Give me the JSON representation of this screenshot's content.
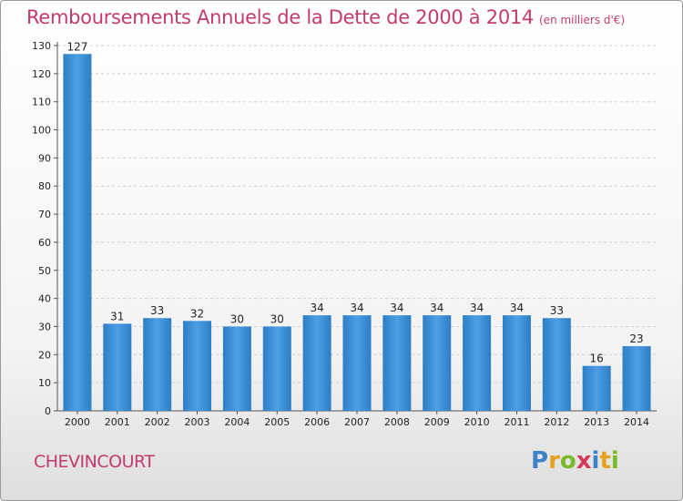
{
  "chart_data": {
    "type": "bar",
    "title": "Remboursements Annuels de la Dette de 2000 à 2014",
    "unit": "(en milliers d'€)",
    "categories": [
      "2000",
      "2001",
      "2002",
      "2003",
      "2004",
      "2005",
      "2006",
      "2007",
      "2008",
      "2009",
      "2010",
      "2011",
      "2012",
      "2013",
      "2014"
    ],
    "values": [
      127,
      31,
      33,
      32,
      30,
      30,
      34,
      34,
      34,
      34,
      34,
      34,
      33,
      16,
      23
    ],
    "ylim": [
      0,
      130
    ],
    "yticks": [
      0,
      10,
      20,
      30,
      40,
      50,
      60,
      70,
      80,
      90,
      100,
      110,
      120,
      130
    ],
    "grid": true,
    "legend": "none",
    "bar_color": "#3d8fd6",
    "xlabel": "",
    "ylabel": ""
  },
  "commune": "CHEVINCOURT",
  "logo": {
    "text": "Proxiti",
    "letters": [
      {
        "ch": "P",
        "color": "#3b82c8"
      },
      {
        "ch": "r",
        "color": "#e8a020"
      },
      {
        "ch": "o",
        "color": "#7ab928"
      },
      {
        "ch": "x",
        "color": "#d63a5a"
      },
      {
        "ch": "i",
        "color": "#3b82c8"
      },
      {
        "ch": "t",
        "color": "#e8a020"
      },
      {
        "ch": "i",
        "color": "#7ab928"
      }
    ]
  }
}
